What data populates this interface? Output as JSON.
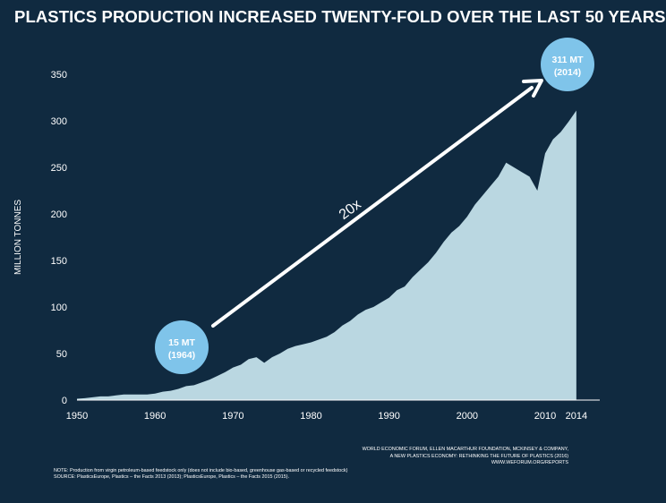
{
  "chart_data": {
    "type": "area",
    "title": "PLASTICS PRODUCTION INCREASED TWENTY-FOLD OVER THE LAST 50 YEARS",
    "ylabel": "MILLION TONNES",
    "xlabel": "",
    "x_ticks": [
      "1950",
      "1960",
      "1970",
      "1980",
      "1990",
      "2000",
      "2010",
      "2014"
    ],
    "y_ticks": [
      "0",
      "50",
      "100",
      "150",
      "200",
      "250",
      "300",
      "350"
    ],
    "xlim": [
      1950,
      2017
    ],
    "ylim": [
      0,
      350
    ],
    "x": [
      1950,
      1951,
      1952,
      1953,
      1954,
      1955,
      1956,
      1957,
      1958,
      1959,
      1960,
      1961,
      1962,
      1963,
      1964,
      1965,
      1966,
      1967,
      1968,
      1969,
      1970,
      1971,
      1972,
      1973,
      1974,
      1975,
      1976,
      1977,
      1978,
      1979,
      1980,
      1981,
      1982,
      1983,
      1984,
      1985,
      1986,
      1987,
      1988,
      1989,
      1990,
      1991,
      1992,
      1993,
      1994,
      1995,
      1996,
      1997,
      1998,
      1999,
      2000,
      2001,
      2002,
      2003,
      2004,
      2005,
      2006,
      2007,
      2008,
      2009,
      2010,
      2011,
      2012,
      2013,
      2014
    ],
    "values": [
      1.5,
      2,
      3,
      4,
      4,
      5,
      6,
      6,
      6,
      6,
      7,
      9,
      10,
      12,
      15,
      16,
      19,
      22,
      26,
      30,
      35,
      38,
      44,
      46,
      40,
      46,
      50,
      55,
      58,
      60,
      62,
      65,
      68,
      73,
      80,
      85,
      92,
      97,
      100,
      105,
      110,
      118,
      122,
      132,
      140,
      148,
      158,
      170,
      180,
      187,
      197,
      210,
      220,
      230,
      240,
      255,
      250,
      245,
      240,
      225,
      265,
      280,
      288,
      299,
      311
    ],
    "color": "#bad7e1",
    "annotations": {
      "start_bubble": [
        "15 MT",
        "(1964)"
      ],
      "end_bubble": [
        "311 MT",
        "(2014)"
      ],
      "arrow_label": "20x",
      "bubble_color": "#7fc4ea"
    },
    "grid": false,
    "legend": "none"
  },
  "source_right": [
    "WORLD ECONOMIC FORUM, ELLEN MACARTHUR FOUNDATION, MCKINSEY & COMPANY,",
    "A NEW PLASTICS ECONOMY: RETHINKING THE FUTURE OF PLASTICS (2016)",
    "WWW.WEFORUM.ORG/REPORTS"
  ],
  "source_left": [
    "NOTE: Production from virgin petroleum-based feedstock only (does not include bio-based, greenhouse gas-based or recycled feedstock)",
    "SOURCE: PlasticsEurope, Plastics – the Facts 2013 (2013); PlasticsEurope, Plastics – the Facts 2015 (2015)."
  ]
}
